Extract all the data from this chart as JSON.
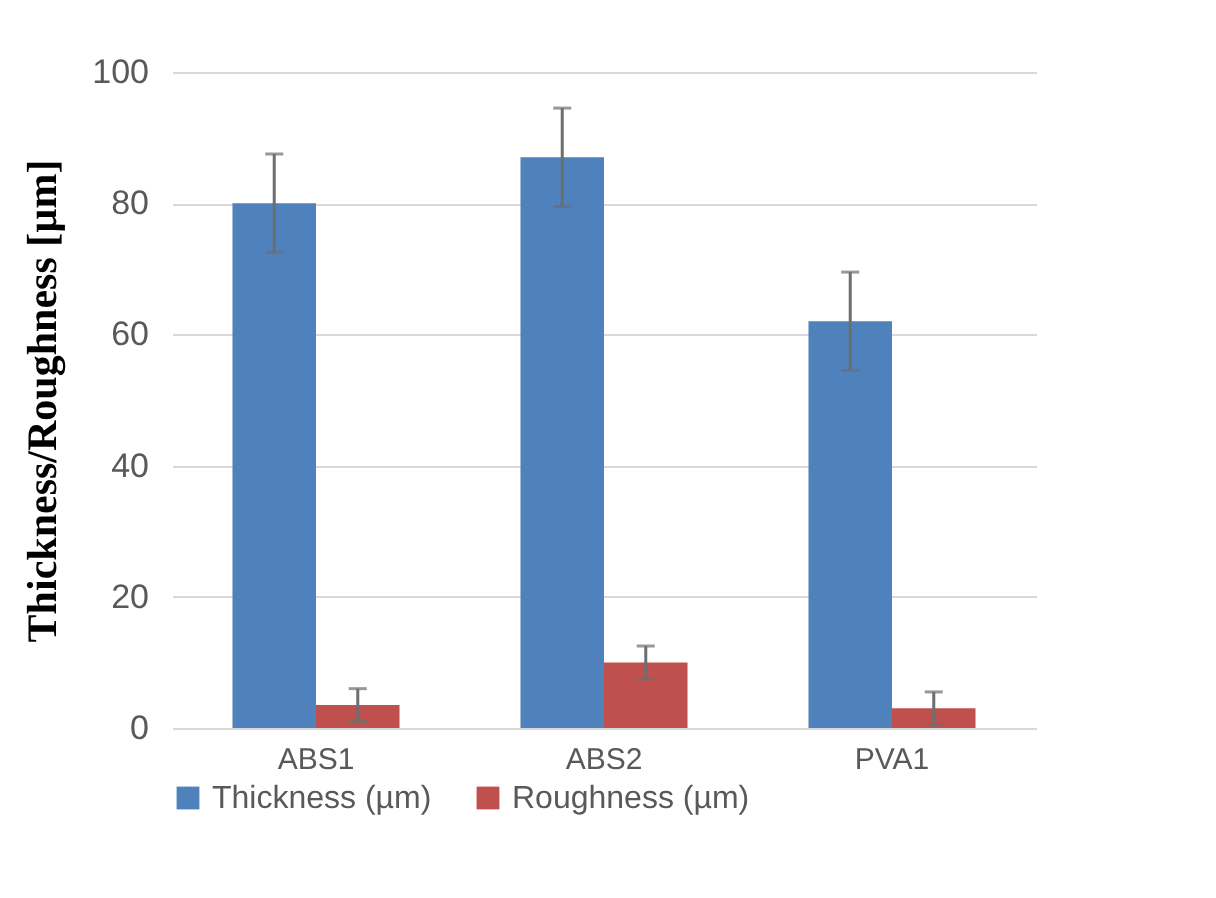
{
  "chart_data": {
    "type": "bar",
    "ylabel": "Thickness/Roughness [µm]",
    "categories": [
      "ABS1",
      "ABS2",
      "PVA1"
    ],
    "series": [
      {
        "name": "Thickness (µm)",
        "color": "#4f81bd",
        "values": [
          80,
          87,
          62
        ],
        "errors": [
          7.5,
          7.5,
          7.5
        ]
      },
      {
        "name": "Roughness (µm)",
        "color": "#c0504d",
        "values": [
          3.5,
          10,
          3
        ],
        "errors": [
          2.5,
          2.5,
          2.5
        ]
      }
    ],
    "ylim": [
      0,
      100
    ],
    "yticks": [
      0,
      20,
      40,
      60,
      80,
      100
    ],
    "grid": "y",
    "legend": "bottom"
  }
}
